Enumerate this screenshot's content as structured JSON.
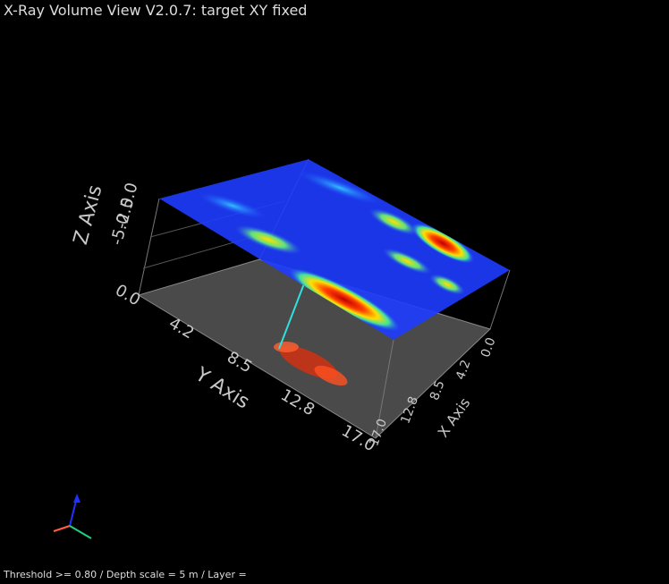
{
  "window": {
    "title": "X-Ray Volume View V2.0.7: target XY fixed"
  },
  "scene": {
    "z_axis": {
      "label": "Z Axis",
      "ticks": [
        "-5.0",
        "-2.5",
        "0.0"
      ]
    },
    "y_axis": {
      "label": "Y Axis",
      "ticks": [
        "0.0",
        "4.2",
        "8.5",
        "12.8",
        "17.0"
      ]
    },
    "x_axis": {
      "label": "X Axis",
      "ticks": [
        "0.0",
        "4.2",
        "8.5",
        "12.8",
        "17.0"
      ]
    }
  },
  "status": {
    "text": "Threshold >= 0.80 / Depth scale = 5 m / Layer ="
  }
}
